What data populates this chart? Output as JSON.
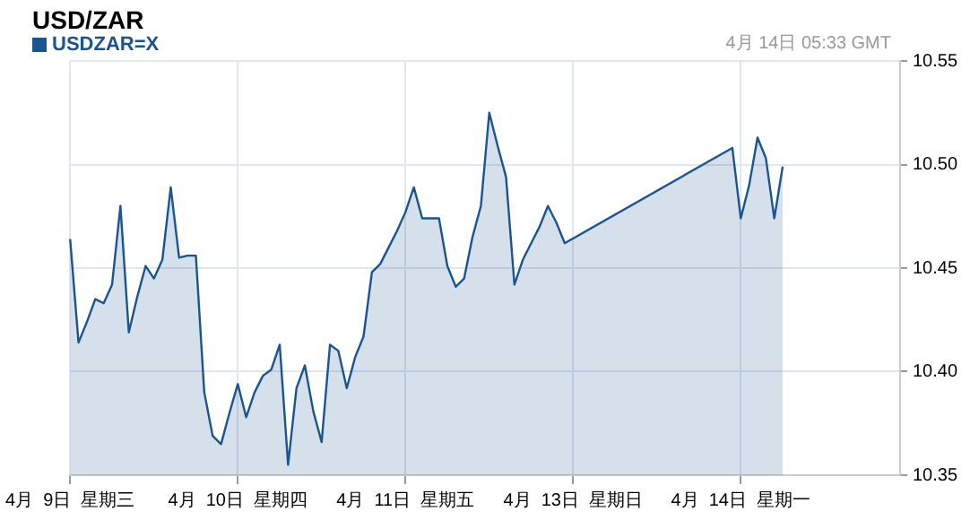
{
  "chart_data": {
    "type": "area",
    "title": "USD/ZAR",
    "annotations": [
      "4月 14日 05:33 GMT"
    ],
    "legend": "top left",
    "grid": true,
    "categories": [
      "4月  9日  星期三",
      null,
      null,
      null,
      null,
      null,
      null,
      null,
      null,
      null,
      null,
      null,
      null,
      null,
      null,
      null,
      null,
      null,
      null,
      null,
      "4月  10日  星期四",
      null,
      null,
      null,
      null,
      null,
      null,
      null,
      null,
      null,
      null,
      null,
      null,
      null,
      null,
      null,
      null,
      null,
      null,
      null,
      "4月  11日  星期五",
      null,
      null,
      null,
      null,
      null,
      null,
      null,
      null,
      null,
      null,
      null,
      null,
      null,
      null,
      null,
      null,
      null,
      null,
      null,
      "4月  13日  星期日",
      null,
      null,
      null,
      null,
      null,
      null,
      null,
      null,
      null,
      null,
      null,
      null,
      null,
      null,
      null,
      null,
      null,
      null,
      null,
      "4月  14日  星期一",
      null,
      null,
      null,
      null,
      null,
      null,
      null,
      null,
      null,
      null,
      null,
      null,
      null,
      null,
      null,
      null,
      null,
      null,
      null
    ],
    "ylim": [
      10.35,
      10.55
    ],
    "yticks": [
      10.35,
      {
        "value": 10.4,
        "label": "10.40"
      },
      {
        "value": 10.45,
        "label": "10.45"
      },
      {
        "value": 10.5,
        "label": "10.50"
      },
      {
        "value": 10.55,
        "label": "10.55"
      }
    ],
    "series": [
      {
        "name": "USDZAR=X",
        "color": "#1a5590",
        "values": [
          10.464,
          10.414,
          10.424,
          10.435,
          10.433,
          10.442,
          10.48,
          10.419,
          10.436,
          10.451,
          10.445,
          10.454,
          10.489,
          10.455,
          10.456,
          10.456,
          10.39,
          10.369,
          10.365,
          10.38,
          10.394,
          10.378,
          10.39,
          10.398,
          10.401,
          10.413,
          10.355,
          10.392,
          10.403,
          10.381,
          10.366,
          10.413,
          10.41,
          10.392,
          10.407,
          10.417,
          10.448,
          10.452,
          10.46,
          10.468,
          10.477,
          10.489,
          10.474,
          10.474,
          10.474,
          10.451,
          10.441,
          10.445,
          10.465,
          10.48,
          10.525,
          10.509,
          10.494,
          10.442,
          10.454,
          10.462,
          10.47,
          10.48,
          10.472,
          10.462,
          null,
          null,
          null,
          null,
          null,
          null,
          null,
          null,
          null,
          null,
          null,
          null,
          null,
          null,
          null,
          null,
          null,
          null,
          null,
          10.508,
          10.474,
          10.49,
          10.513,
          10.503,
          10.474,
          10.499,
          null,
          null,
          null,
          null,
          null,
          null,
          null,
          null,
          null,
          null,
          null,
          null,
          null,
          null
        ]
      }
    ]
  }
}
